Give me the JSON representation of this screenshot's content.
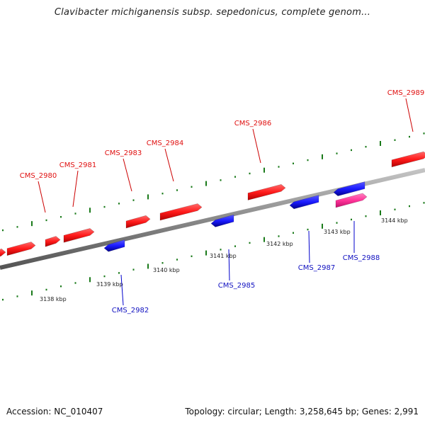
{
  "title": "Clavibacter michiganensis subsp. sepedonicus, complete genom...",
  "footer": {
    "accession": "Accession: NC_010407",
    "summary": "Topology: circular; Length: 3,258,645 bp; Genes: 2,991"
  },
  "colors": {
    "forward_gene": "#ff1a1a",
    "reverse_gene": "#1a1aff",
    "highlight_gene": "#ff3399",
    "forward_label": "#e01010",
    "reverse_label": "#1010c0",
    "backbone": "#8a8a8a",
    "tick": "#1a7a1a",
    "leader_forward": "#cc0000",
    "leader_reverse": "#0000cc"
  },
  "scale_ticks_kbp": [
    "3138 kbp",
    "3139 kbp",
    "3140 kbp",
    "3141 kbp",
    "3142 kbp",
    "3143 kbp",
    "3144 kbp"
  ],
  "forward_genes": [
    "CMS_2980",
    "CMS_2981",
    "CMS_2983",
    "CMS_2984",
    "CMS_2986",
    "CMS_2989"
  ],
  "reverse_genes": [
    "CMS_2982",
    "CMS_2985",
    "CMS_2987",
    "CMS_2988"
  ]
}
